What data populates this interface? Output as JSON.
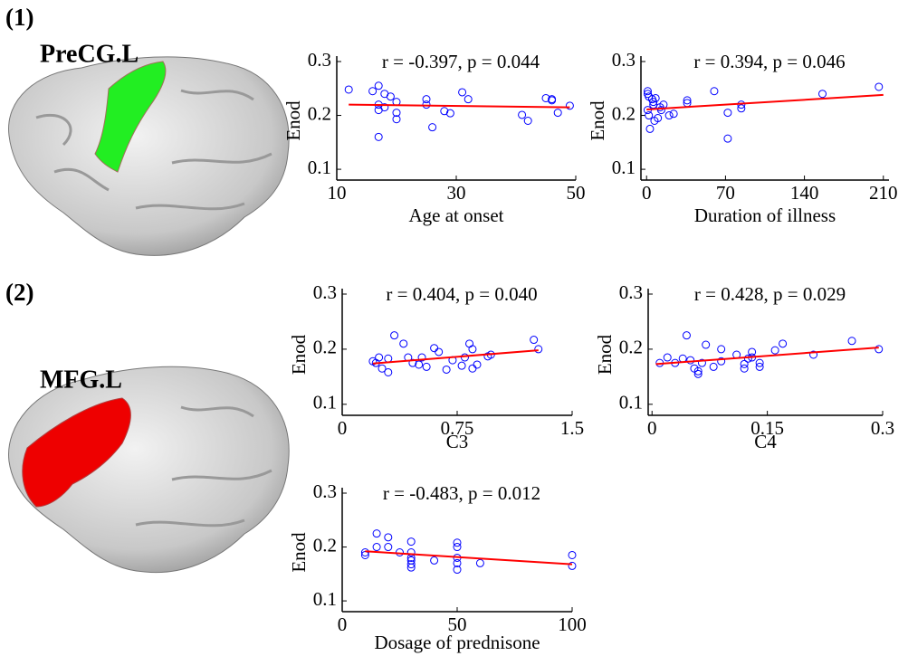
{
  "panels": [
    {
      "label": "(1)",
      "region": "PreCG.L"
    },
    {
      "label": "(2)",
      "region": "MFG.L"
    }
  ],
  "chart_data": [
    {
      "type": "scatter",
      "annotation": "r = -0.397, p = 0.044",
      "x_label": "Age at onset",
      "y_label": "Enod",
      "xlim": [
        10,
        50
      ],
      "ylim": [
        0.08,
        0.3
      ],
      "xticks": [
        10,
        30,
        50
      ],
      "yticks": [
        0.1,
        0.2,
        0.3
      ],
      "color": "#0000ff",
      "x": [
        12,
        16,
        17,
        18,
        19,
        20,
        20,
        20,
        17,
        17,
        17,
        18,
        25,
        25,
        26,
        28,
        29,
        31,
        32,
        41,
        42,
        45,
        46,
        46,
        47,
        49
      ],
      "values": [
        0.248,
        0.245,
        0.255,
        0.24,
        0.235,
        0.225,
        0.205,
        0.193,
        0.16,
        0.21,
        0.22,
        0.215,
        0.22,
        0.23,
        0.178,
        0.208,
        0.204,
        0.243,
        0.23,
        0.201,
        0.19,
        0.232,
        0.23,
        0.228,
        0.205,
        0.218
      ],
      "fit": {
        "x": [
          12,
          49
        ],
        "y": [
          0.22,
          0.215
        ],
        "color": "#ff0000"
      }
    },
    {
      "type": "scatter",
      "annotation": "r = 0.394, p = 0.046",
      "x_label": "Duration of illness",
      "y_label": "Enod",
      "xlim": [
        -5,
        215
      ],
      "ylim": [
        0.08,
        0.3
      ],
      "xticks": [
        0,
        70,
        140,
        210
      ],
      "yticks": [
        0.1,
        0.2,
        0.3
      ],
      "color": "#0000ff",
      "x": [
        1,
        1,
        2,
        1,
        2,
        3,
        5,
        6,
        6,
        8,
        7,
        10,
        12,
        13,
        15,
        20,
        24,
        36,
        36,
        60,
        72,
        72,
        84,
        84,
        156,
        206
      ],
      "values": [
        0.245,
        0.24,
        0.235,
        0.21,
        0.2,
        0.175,
        0.23,
        0.22,
        0.225,
        0.232,
        0.19,
        0.195,
        0.215,
        0.21,
        0.22,
        0.2,
        0.203,
        0.228,
        0.223,
        0.245,
        0.205,
        0.157,
        0.22,
        0.213,
        0.24,
        0.253
      ],
      "fit": {
        "x": [
          0,
          210
        ],
        "y": [
          0.211,
          0.238
        ],
        "color": "#ff0000"
      }
    },
    {
      "type": "scatter",
      "annotation": "r = 0.404, p = 0.040",
      "x_label": "C3",
      "y_label": "Enod",
      "xlim": [
        0,
        1.5
      ],
      "ylim": [
        0.08,
        0.3
      ],
      "xticks": [
        0,
        0.75,
        1.5
      ],
      "yticks": [
        0.1,
        0.2,
        0.3
      ],
      "color": "#0000ff",
      "x": [
        0.2,
        0.22,
        0.24,
        0.26,
        0.3,
        0.3,
        0.34,
        0.4,
        0.43,
        0.46,
        0.5,
        0.52,
        0.55,
        0.6,
        0.63,
        0.68,
        0.72,
        0.78,
        0.8,
        0.83,
        0.85,
        0.85,
        0.88,
        0.95,
        0.97,
        1.25,
        1.28
      ],
      "values": [
        0.178,
        0.175,
        0.185,
        0.165,
        0.158,
        0.183,
        0.225,
        0.21,
        0.185,
        0.175,
        0.172,
        0.185,
        0.168,
        0.202,
        0.195,
        0.163,
        0.18,
        0.17,
        0.185,
        0.21,
        0.2,
        0.165,
        0.172,
        0.187,
        0.19,
        0.217,
        0.2
      ],
      "fit": {
        "x": [
          0.2,
          1.28
        ],
        "y": [
          0.174,
          0.198
        ],
        "color": "#ff0000"
      }
    },
    {
      "type": "scatter",
      "annotation": "r = 0.428, p = 0.029",
      "x_label": "C4",
      "y_label": "Enod",
      "xlim": [
        -0.005,
        0.3
      ],
      "ylim": [
        0.08,
        0.3
      ],
      "xticks": [
        0,
        0.15,
        0.3
      ],
      "yticks": [
        0.1,
        0.2,
        0.3
      ],
      "color": "#0000ff",
      "x": [
        0.01,
        0.02,
        0.03,
        0.04,
        0.045,
        0.05,
        0.055,
        0.06,
        0.06,
        0.065,
        0.07,
        0.08,
        0.09,
        0.09,
        0.11,
        0.12,
        0.12,
        0.125,
        0.13,
        0.13,
        0.14,
        0.14,
        0.16,
        0.17,
        0.21,
        0.26,
        0.295
      ],
      "values": [
        0.175,
        0.185,
        0.175,
        0.183,
        0.225,
        0.18,
        0.165,
        0.155,
        0.16,
        0.175,
        0.208,
        0.168,
        0.2,
        0.178,
        0.19,
        0.165,
        0.173,
        0.183,
        0.195,
        0.185,
        0.175,
        0.168,
        0.198,
        0.21,
        0.19,
        0.215,
        0.2
      ],
      "fit": {
        "x": [
          0.005,
          0.295
        ],
        "y": [
          0.173,
          0.203
        ],
        "color": "#ff0000"
      }
    },
    {
      "type": "scatter",
      "annotation": "r = -0.483, p = 0.012",
      "x_label": "Dosage of prednisone",
      "y_label": "Enod",
      "xlim": [
        0,
        100
      ],
      "ylim": [
        0.08,
        0.3
      ],
      "xticks": [
        0,
        50,
        100
      ],
      "yticks": [
        0.1,
        0.2,
        0.3
      ],
      "color": "#0000ff",
      "x": [
        10,
        10,
        15,
        15,
        20,
        20,
        25,
        30,
        30,
        30,
        30,
        30,
        30,
        40,
        50,
        50,
        50,
        50,
        50,
        60,
        100,
        100
      ],
      "values": [
        0.19,
        0.185,
        0.225,
        0.2,
        0.218,
        0.2,
        0.19,
        0.21,
        0.19,
        0.18,
        0.175,
        0.168,
        0.162,
        0.175,
        0.208,
        0.2,
        0.18,
        0.17,
        0.158,
        0.17,
        0.185,
        0.165
      ],
      "fit": {
        "x": [
          10,
          100
        ],
        "y": [
          0.192,
          0.168
        ],
        "color": "#ff0000"
      }
    }
  ]
}
